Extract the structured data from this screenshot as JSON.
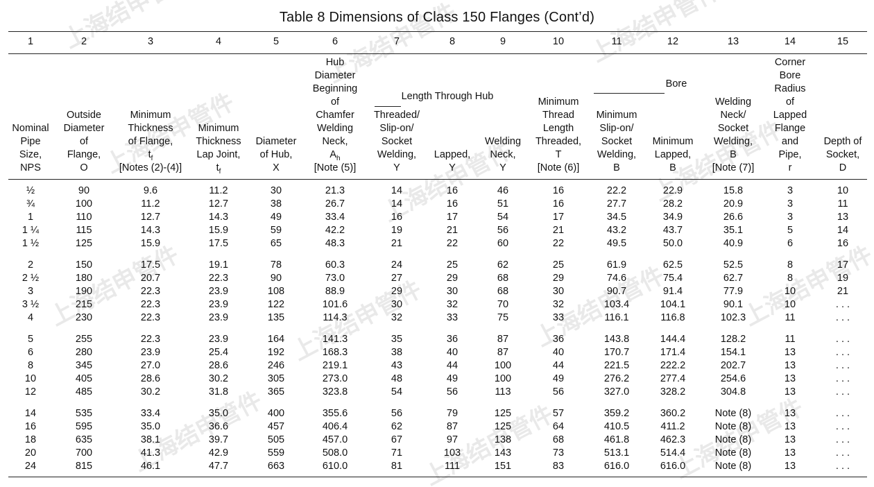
{
  "title": "Table 8    Dimensions of Class 150 Flanges (Cont’d)",
  "column_numbers": [
    "1",
    "2",
    "3",
    "4",
    "5",
    "6",
    "7",
    "8",
    "9",
    "10",
    "11",
    "12",
    "13",
    "14",
    "15"
  ],
  "group_headers": {
    "length_through_hub": "Length  Through  Hub",
    "bore": "Bore"
  },
  "headers": [
    [
      "Nominal",
      "Pipe",
      "Size,",
      "NPS"
    ],
    [
      "Outside",
      "Diameter",
      "of",
      "Flange,",
      "O"
    ],
    [
      "Minimum",
      "Thickness",
      "of Flange,",
      "t",
      "[Notes (2)-(4)]"
    ],
    [
      "Minimum",
      "Thickness",
      "Lap Joint,",
      "t"
    ],
    [
      "Diameter",
      "of Hub,",
      "X"
    ],
    [
      "Hub",
      "Diameter",
      "Beginning",
      "of",
      "Chamfer",
      "Welding",
      "Neck,",
      "A",
      "[Note (5)]"
    ],
    [
      "Threaded/",
      "Slip-on/",
      "Socket",
      "Welding,",
      "Y"
    ],
    [
      "Lapped,",
      "Y"
    ],
    [
      "Welding",
      "Neck,",
      "Y"
    ],
    [
      "Minimum",
      "Thread",
      "Length",
      "Threaded,",
      "T",
      "[Note (6)]"
    ],
    [
      "Minimum",
      "Slip-on/",
      "Socket",
      "Welding,",
      "B"
    ],
    [
      "Minimum",
      "Lapped,",
      "B"
    ],
    [
      "Welding",
      "Neck/",
      "Socket",
      "Welding,",
      "B",
      "[Note (7)]"
    ],
    [
      "Corner",
      "Bore",
      "Radius",
      "of",
      "Lapped",
      "Flange",
      "and",
      "Pipe,",
      "r"
    ],
    [
      "Depth of",
      "Socket,",
      "D"
    ]
  ],
  "subscripts": {
    "tf": "f",
    "ah": "h"
  },
  "rows": [
    [
      "1/2",
      "90",
      "9.6",
      "11.2",
      "30",
      "21.3",
      "14",
      "16",
      "46",
      "16",
      "22.2",
      "22.9",
      "15.8",
      "3",
      "10"
    ],
    [
      "3/4",
      "100",
      "11.2",
      "12.7",
      "38",
      "26.7",
      "14",
      "16",
      "51",
      "16",
      "27.7",
      "28.2",
      "20.9",
      "3",
      "11"
    ],
    [
      "1",
      "110",
      "12.7",
      "14.3",
      "49",
      "33.4",
      "16",
      "17",
      "54",
      "17",
      "34.5",
      "34.9",
      "26.6",
      "3",
      "13"
    ],
    [
      "1 1/4",
      "115",
      "14.3",
      "15.9",
      "59",
      "42.2",
      "19",
      "21",
      "56",
      "21",
      "43.2",
      "43.7",
      "35.1",
      "5",
      "14"
    ],
    [
      "1 1/2",
      "125",
      "15.9",
      "17.5",
      "65",
      "48.3",
      "21",
      "22",
      "60",
      "22",
      "49.5",
      "50.0",
      "40.9",
      "6",
      "16"
    ],
    [
      "2",
      "150",
      "17.5",
      "19.1",
      "78",
      "60.3",
      "24",
      "25",
      "62",
      "25",
      "61.9",
      "62.5",
      "52.5",
      "8",
      "17"
    ],
    [
      "2 1/2",
      "180",
      "20.7",
      "22.3",
      "90",
      "73.0",
      "27",
      "29",
      "68",
      "29",
      "74.6",
      "75.4",
      "62.7",
      "8",
      "19"
    ],
    [
      "3",
      "190",
      "22.3",
      "23.9",
      "108",
      "88.9",
      "29",
      "30",
      "68",
      "30",
      "90.7",
      "91.4",
      "77.9",
      "10",
      "21"
    ],
    [
      "3 1/2",
      "215",
      "22.3",
      "23.9",
      "122",
      "101.6",
      "30",
      "32",
      "70",
      "32",
      "103.4",
      "104.1",
      "90.1",
      "10",
      "..."
    ],
    [
      "4",
      "230",
      "22.3",
      "23.9",
      "135",
      "114.3",
      "32",
      "33",
      "75",
      "33",
      "116.1",
      "116.8",
      "102.3",
      "11",
      "..."
    ],
    [
      "5",
      "255",
      "22.3",
      "23.9",
      "164",
      "141.3",
      "35",
      "36",
      "87",
      "36",
      "143.8",
      "144.4",
      "128.2",
      "11",
      "..."
    ],
    [
      "6",
      "280",
      "23.9",
      "25.4",
      "192",
      "168.3",
      "38",
      "40",
      "87",
      "40",
      "170.7",
      "171.4",
      "154.1",
      "13",
      "..."
    ],
    [
      "8",
      "345",
      "27.0",
      "28.6",
      "246",
      "219.1",
      "43",
      "44",
      "100",
      "44",
      "221.5",
      "222.2",
      "202.7",
      "13",
      "..."
    ],
    [
      "10",
      "405",
      "28.6",
      "30.2",
      "305",
      "273.0",
      "48",
      "49",
      "100",
      "49",
      "276.2",
      "277.4",
      "254.6",
      "13",
      "..."
    ],
    [
      "12",
      "485",
      "30.2",
      "31.8",
      "365",
      "323.8",
      "54",
      "56",
      "113",
      "56",
      "327.0",
      "328.2",
      "304.8",
      "13",
      "..."
    ],
    [
      "14",
      "535",
      "33.4",
      "35.0",
      "400",
      "355.6",
      "56",
      "79",
      "125",
      "57",
      "359.2",
      "360.2",
      "Note (8)",
      "13",
      "..."
    ],
    [
      "16",
      "595",
      "35.0",
      "36.6",
      "457",
      "406.4",
      "62",
      "87",
      "125",
      "64",
      "410.5",
      "411.2",
      "Note (8)",
      "13",
      "..."
    ],
    [
      "18",
      "635",
      "38.1",
      "39.7",
      "505",
      "457.0",
      "67",
      "97",
      "138",
      "68",
      "461.8",
      "462.3",
      "Note (8)",
      "13",
      "..."
    ],
    [
      "20",
      "700",
      "41.3",
      "42.9",
      "559",
      "508.0",
      "71",
      "103",
      "143",
      "73",
      "513.1",
      "514.4",
      "Note (8)",
      "13",
      "..."
    ],
    [
      "24",
      "815",
      "46.1",
      "47.7",
      "663",
      "610.0",
      "81",
      "111",
      "151",
      "83",
      "616.0",
      "616.0",
      "Note (8)",
      "13",
      "..."
    ]
  ],
  "watermark_text": "上海结申管件"
}
